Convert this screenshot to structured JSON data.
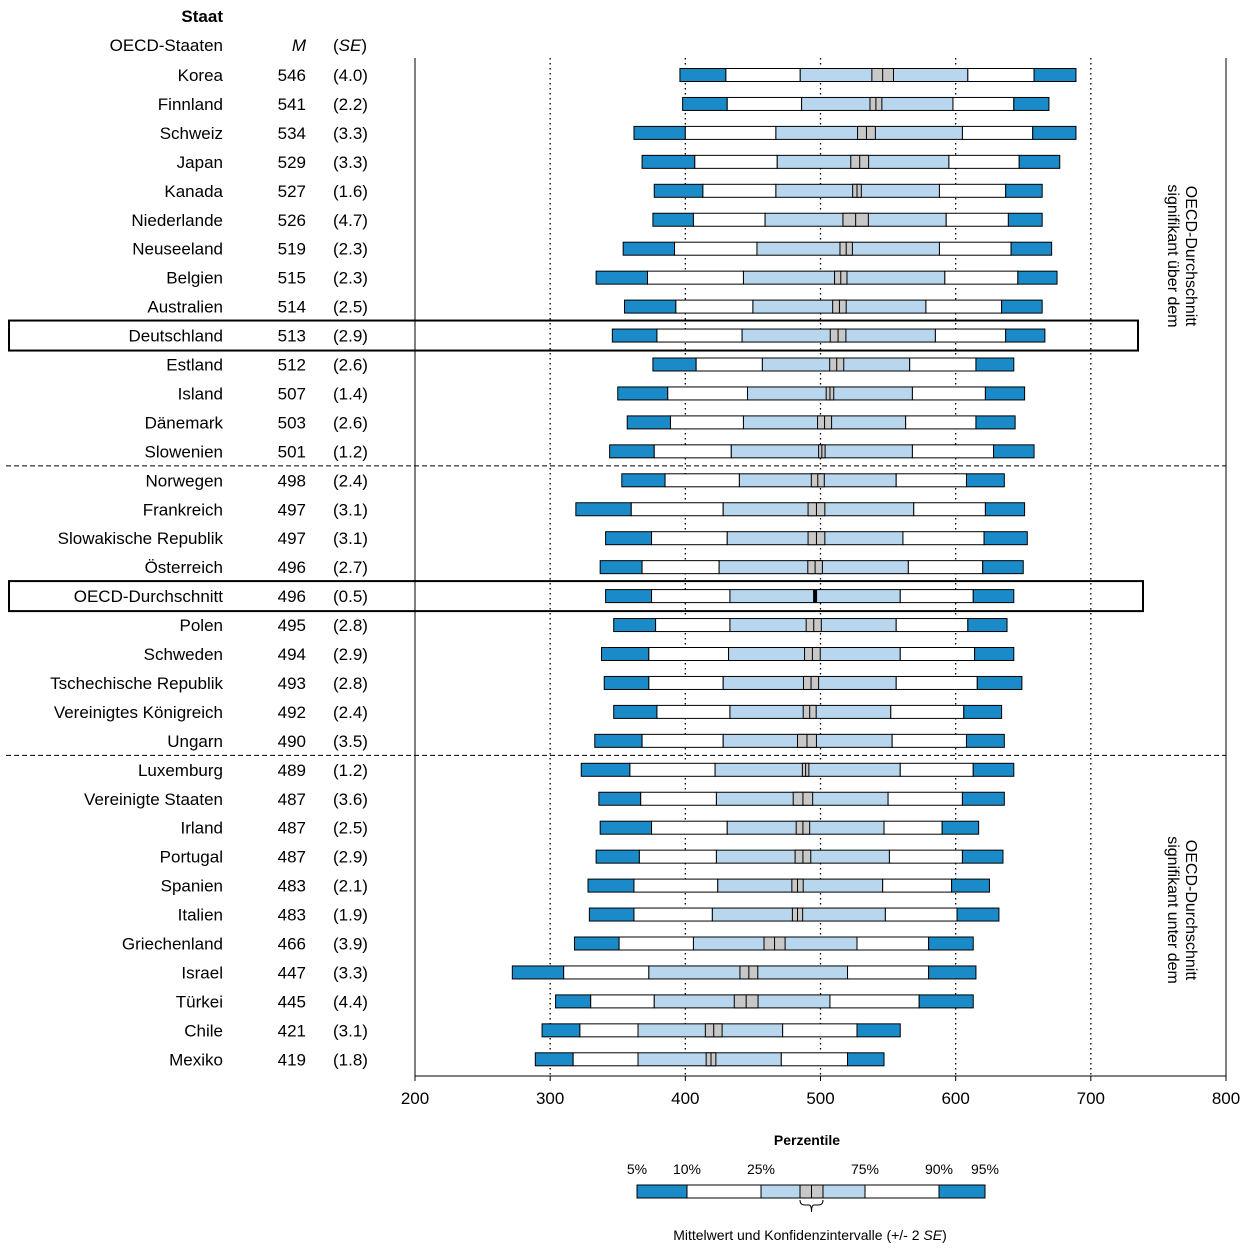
{
  "header": {
    "country_col": "Staat",
    "group_label": "OECD-Staaten",
    "mean_col": "M",
    "se_col_open": "(",
    "se_col_mid": "SE",
    "se_col_close": ")"
  },
  "regions": {
    "above": [
      "signifikant über dem",
      "OECD-Durchschnitt"
    ],
    "below": [
      "signifikant unter dem",
      "OECD-Durchschnitt"
    ]
  },
  "legend": {
    "title": "Perzentile",
    "labels": [
      "5%",
      "10%",
      "25%",
      "75%",
      "90%",
      "95%"
    ],
    "caption_prefix": "Mittelwert und Konfidenzintervalle (+/- 2 ",
    "caption_italic": "SE",
    "caption_suffix": ")"
  },
  "colors": {
    "outer": "#1b8ac8",
    "mid": "#ffffff",
    "inner": "#b8d7ee",
    "ci": "#c8c8c8",
    "oecd_mean": "#000000"
  },
  "chart_data": {
    "type": "percentile_bar",
    "x_ticks": [
      200,
      300,
      400,
      500,
      600,
      700,
      800
    ],
    "xlim": [
      200,
      800
    ],
    "dotted_gridlines": [
      300,
      400,
      500,
      600,
      700
    ],
    "highlighted": [
      "Deutschland",
      "OECD-Durchschnitt"
    ],
    "group_separators_after": [
      "Slowenien",
      "Ungarn"
    ],
    "rows": [
      {
        "country": "Korea",
        "mean": 546,
        "se": "(4.0)",
        "p5": 396,
        "p10": 430,
        "p25": 485,
        "p75": 609,
        "p90": 658,
        "p95": 689
      },
      {
        "country": "Finnland",
        "mean": 541,
        "se": "(2.2)",
        "p5": 398,
        "p10": 431,
        "p25": 486,
        "p75": 598,
        "p90": 643,
        "p95": 669
      },
      {
        "country": "Schweiz",
        "mean": 534,
        "se": "(3.3)",
        "p5": 362,
        "p10": 400,
        "p25": 467,
        "p75": 605,
        "p90": 657,
        "p95": 689
      },
      {
        "country": "Japan",
        "mean": 529,
        "se": "(3.3)",
        "p5": 368,
        "p10": 407,
        "p25": 468,
        "p75": 595,
        "p90": 647,
        "p95": 677
      },
      {
        "country": "Kanada",
        "mean": 527,
        "se": "(1.6)",
        "p5": 377,
        "p10": 413,
        "p25": 467,
        "p75": 588,
        "p90": 637,
        "p95": 664
      },
      {
        "country": "Niederlande",
        "mean": 526,
        "se": "(4.7)",
        "p5": 376,
        "p10": 406,
        "p25": 459,
        "p75": 593,
        "p90": 639,
        "p95": 664
      },
      {
        "country": "Neuseeland",
        "mean": 519,
        "se": "(2.3)",
        "p5": 354,
        "p10": 392,
        "p25": 453,
        "p75": 588,
        "p90": 641,
        "p95": 671
      },
      {
        "country": "Belgien",
        "mean": 515,
        "se": "(2.3)",
        "p5": 334,
        "p10": 372,
        "p25": 443,
        "p75": 592,
        "p90": 646,
        "p95": 675
      },
      {
        "country": "Australien",
        "mean": 514,
        "se": "(2.5)",
        "p5": 355,
        "p10": 393,
        "p25": 450,
        "p75": 578,
        "p90": 634,
        "p95": 664
      },
      {
        "country": "Deutschland",
        "mean": 513,
        "se": "(2.9)",
        "p5": 346,
        "p10": 379,
        "p25": 442,
        "p75": 585,
        "p90": 637,
        "p95": 666
      },
      {
        "country": "Estland",
        "mean": 512,
        "se": "(2.6)",
        "p5": 376,
        "p10": 408,
        "p25": 457,
        "p75": 566,
        "p90": 615,
        "p95": 643
      },
      {
        "country": "Island",
        "mean": 507,
        "se": "(1.4)",
        "p5": 350,
        "p10": 387,
        "p25": 446,
        "p75": 568,
        "p90": 622,
        "p95": 651
      },
      {
        "country": "Dänemark",
        "mean": 503,
        "se": "(2.6)",
        "p5": 357,
        "p10": 389,
        "p25": 443,
        "p75": 563,
        "p90": 615,
        "p95": 644
      },
      {
        "country": "Slowenien",
        "mean": 501,
        "se": "(1.2)",
        "p5": 344,
        "p10": 377,
        "p25": 434,
        "p75": 568,
        "p90": 628,
        "p95": 658
      },
      {
        "country": "Norwegen",
        "mean": 498,
        "se": "(2.4)",
        "p5": 353,
        "p10": 385,
        "p25": 440,
        "p75": 556,
        "p90": 608,
        "p95": 636
      },
      {
        "country": "Frankreich",
        "mean": 497,
        "se": "(3.1)",
        "p5": 319,
        "p10": 360,
        "p25": 428,
        "p75": 569,
        "p90": 622,
        "p95": 651
      },
      {
        "country": "Slowakische Republik",
        "mean": 497,
        "se": "(3.1)",
        "p5": 341,
        "p10": 375,
        "p25": 431,
        "p75": 561,
        "p90": 621,
        "p95": 653
      },
      {
        "country": "Österreich",
        "mean": 496,
        "se": "(2.7)",
        "p5": 337,
        "p10": 368,
        "p25": 425,
        "p75": 565,
        "p90": 620,
        "p95": 650
      },
      {
        "country": "OECD-Durchschnitt",
        "mean": 496,
        "se": "(0.5)",
        "p5": 341,
        "p10": 375,
        "p25": 433,
        "p75": 559,
        "p90": 613,
        "p95": 643
      },
      {
        "country": "Polen",
        "mean": 495,
        "se": "(2.8)",
        "p5": 347,
        "p10": 378,
        "p25": 433,
        "p75": 556,
        "p90": 609,
        "p95": 638
      },
      {
        "country": "Schweden",
        "mean": 494,
        "se": "(2.9)",
        "p5": 338,
        "p10": 373,
        "p25": 432,
        "p75": 559,
        "p90": 614,
        "p95": 643
      },
      {
        "country": "Tschechische Republik",
        "mean": 493,
        "se": "(2.8)",
        "p5": 340,
        "p10": 373,
        "p25": 428,
        "p75": 556,
        "p90": 616,
        "p95": 649
      },
      {
        "country": "Vereinigtes Königreich",
        "mean": 492,
        "se": "(2.4)",
        "p5": 347,
        "p10": 379,
        "p25": 433,
        "p75": 552,
        "p90": 606,
        "p95": 634
      },
      {
        "country": "Ungarn",
        "mean": 490,
        "se": "(3.5)",
        "p5": 333,
        "p10": 368,
        "p25": 428,
        "p75": 553,
        "p90": 608,
        "p95": 636
      },
      {
        "country": "Luxemburg",
        "mean": 489,
        "se": "(1.2)",
        "p5": 323,
        "p10": 359,
        "p25": 422,
        "p75": 559,
        "p90": 613,
        "p95": 643
      },
      {
        "country": "Vereinigte Staaten",
        "mean": 487,
        "se": "(3.6)",
        "p5": 336,
        "p10": 367,
        "p25": 423,
        "p75": 550,
        "p90": 605,
        "p95": 636
      },
      {
        "country": "Irland",
        "mean": 487,
        "se": "(2.5)",
        "p5": 337,
        "p10": 375,
        "p25": 431,
        "p75": 547,
        "p90": 590,
        "p95": 617
      },
      {
        "country": "Portugal",
        "mean": 487,
        "se": "(2.9)",
        "p5": 334,
        "p10": 366,
        "p25": 423,
        "p75": 551,
        "p90": 605,
        "p95": 635
      },
      {
        "country": "Spanien",
        "mean": 483,
        "se": "(2.1)",
        "p5": 328,
        "p10": 362,
        "p25": 424,
        "p75": 546,
        "p90": 597,
        "p95": 625
      },
      {
        "country": "Italien",
        "mean": 483,
        "se": "(1.9)",
        "p5": 329,
        "p10": 362,
        "p25": 420,
        "p75": 548,
        "p90": 601,
        "p95": 632
      },
      {
        "country": "Griechenland",
        "mean": 466,
        "se": "(3.9)",
        "p5": 318,
        "p10": 351,
        "p25": 406,
        "p75": 527,
        "p90": 580,
        "p95": 613
      },
      {
        "country": "Israel",
        "mean": 447,
        "se": "(3.3)",
        "p5": 272,
        "p10": 310,
        "p25": 373,
        "p75": 520,
        "p90": 580,
        "p95": 615
      },
      {
        "country": "Türkei",
        "mean": 445,
        "se": "(4.4)",
        "p5": 304,
        "p10": 330,
        "p25": 377,
        "p75": 507,
        "p90": 573,
        "p95": 613
      },
      {
        "country": "Chile",
        "mean": 421,
        "se": "(3.1)",
        "p5": 294,
        "p10": 322,
        "p25": 365,
        "p75": 472,
        "p90": 527,
        "p95": 559
      },
      {
        "country": "Mexiko",
        "mean": 419,
        "se": "(1.8)",
        "p5": 289,
        "p10": 317,
        "p25": 365,
        "p75": 471,
        "p90": 520,
        "p95": 547
      }
    ]
  }
}
